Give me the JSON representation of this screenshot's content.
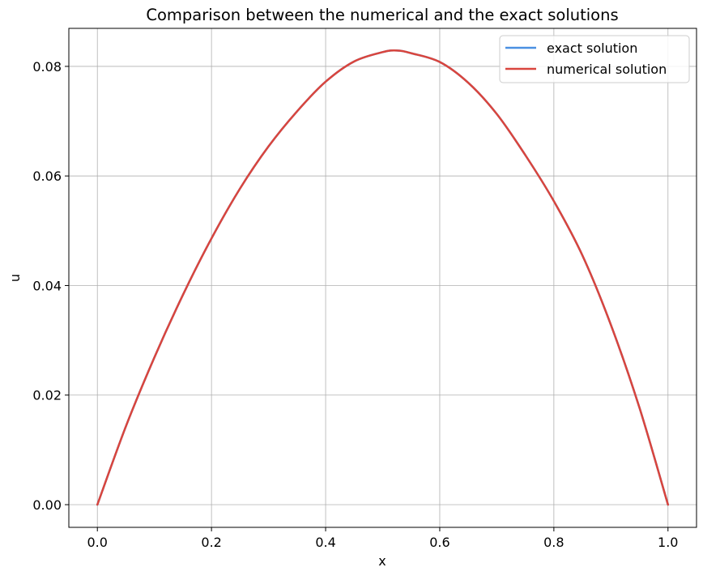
{
  "chart_data": {
    "type": "line",
    "title": "Comparison between the numerical and the exact solutions",
    "xlabel": "x",
    "ylabel": "u",
    "xlim": [
      -0.05,
      1.05
    ],
    "ylim": [
      -0.00414,
      0.08694
    ],
    "xticks": [
      0.0,
      0.2,
      0.4,
      0.6,
      0.8,
      1.0
    ],
    "xtick_labels": [
      "0.0",
      "0.2",
      "0.4",
      "0.6",
      "0.8",
      "1.0"
    ],
    "yticks": [
      0.0,
      0.02,
      0.04,
      0.06,
      0.08
    ],
    "ytick_labels": [
      "0.00",
      "0.02",
      "0.04",
      "0.06",
      "0.08"
    ],
    "grid": true,
    "legend_position": "top-right",
    "x": [
      0.0,
      0.05,
      0.1,
      0.15,
      0.2,
      0.25,
      0.3,
      0.35,
      0.4,
      0.45,
      0.5,
      0.525,
      0.55,
      0.6,
      0.65,
      0.7,
      0.75,
      0.8,
      0.85,
      0.9,
      0.95,
      1.0
    ],
    "series": [
      {
        "name": "exact solution",
        "color": "#4a90e2",
        "values": [
          0.0,
          0.0143,
          0.0269,
          0.0383,
          0.0486,
          0.0577,
          0.0654,
          0.0718,
          0.0772,
          0.0809,
          0.0826,
          0.0829,
          0.0824,
          0.0808,
          0.077,
          0.0713,
          0.0638,
          0.0554,
          0.0455,
          0.0328,
          0.0177,
          0.0
        ]
      },
      {
        "name": "numerical solution",
        "color": "#d9453d",
        "values": [
          0.0,
          0.0143,
          0.0269,
          0.0383,
          0.0486,
          0.0577,
          0.0654,
          0.0718,
          0.0772,
          0.0809,
          0.0826,
          0.0829,
          0.0824,
          0.0808,
          0.077,
          0.0713,
          0.0638,
          0.0554,
          0.0455,
          0.0328,
          0.0177,
          0.0
        ]
      }
    ]
  }
}
